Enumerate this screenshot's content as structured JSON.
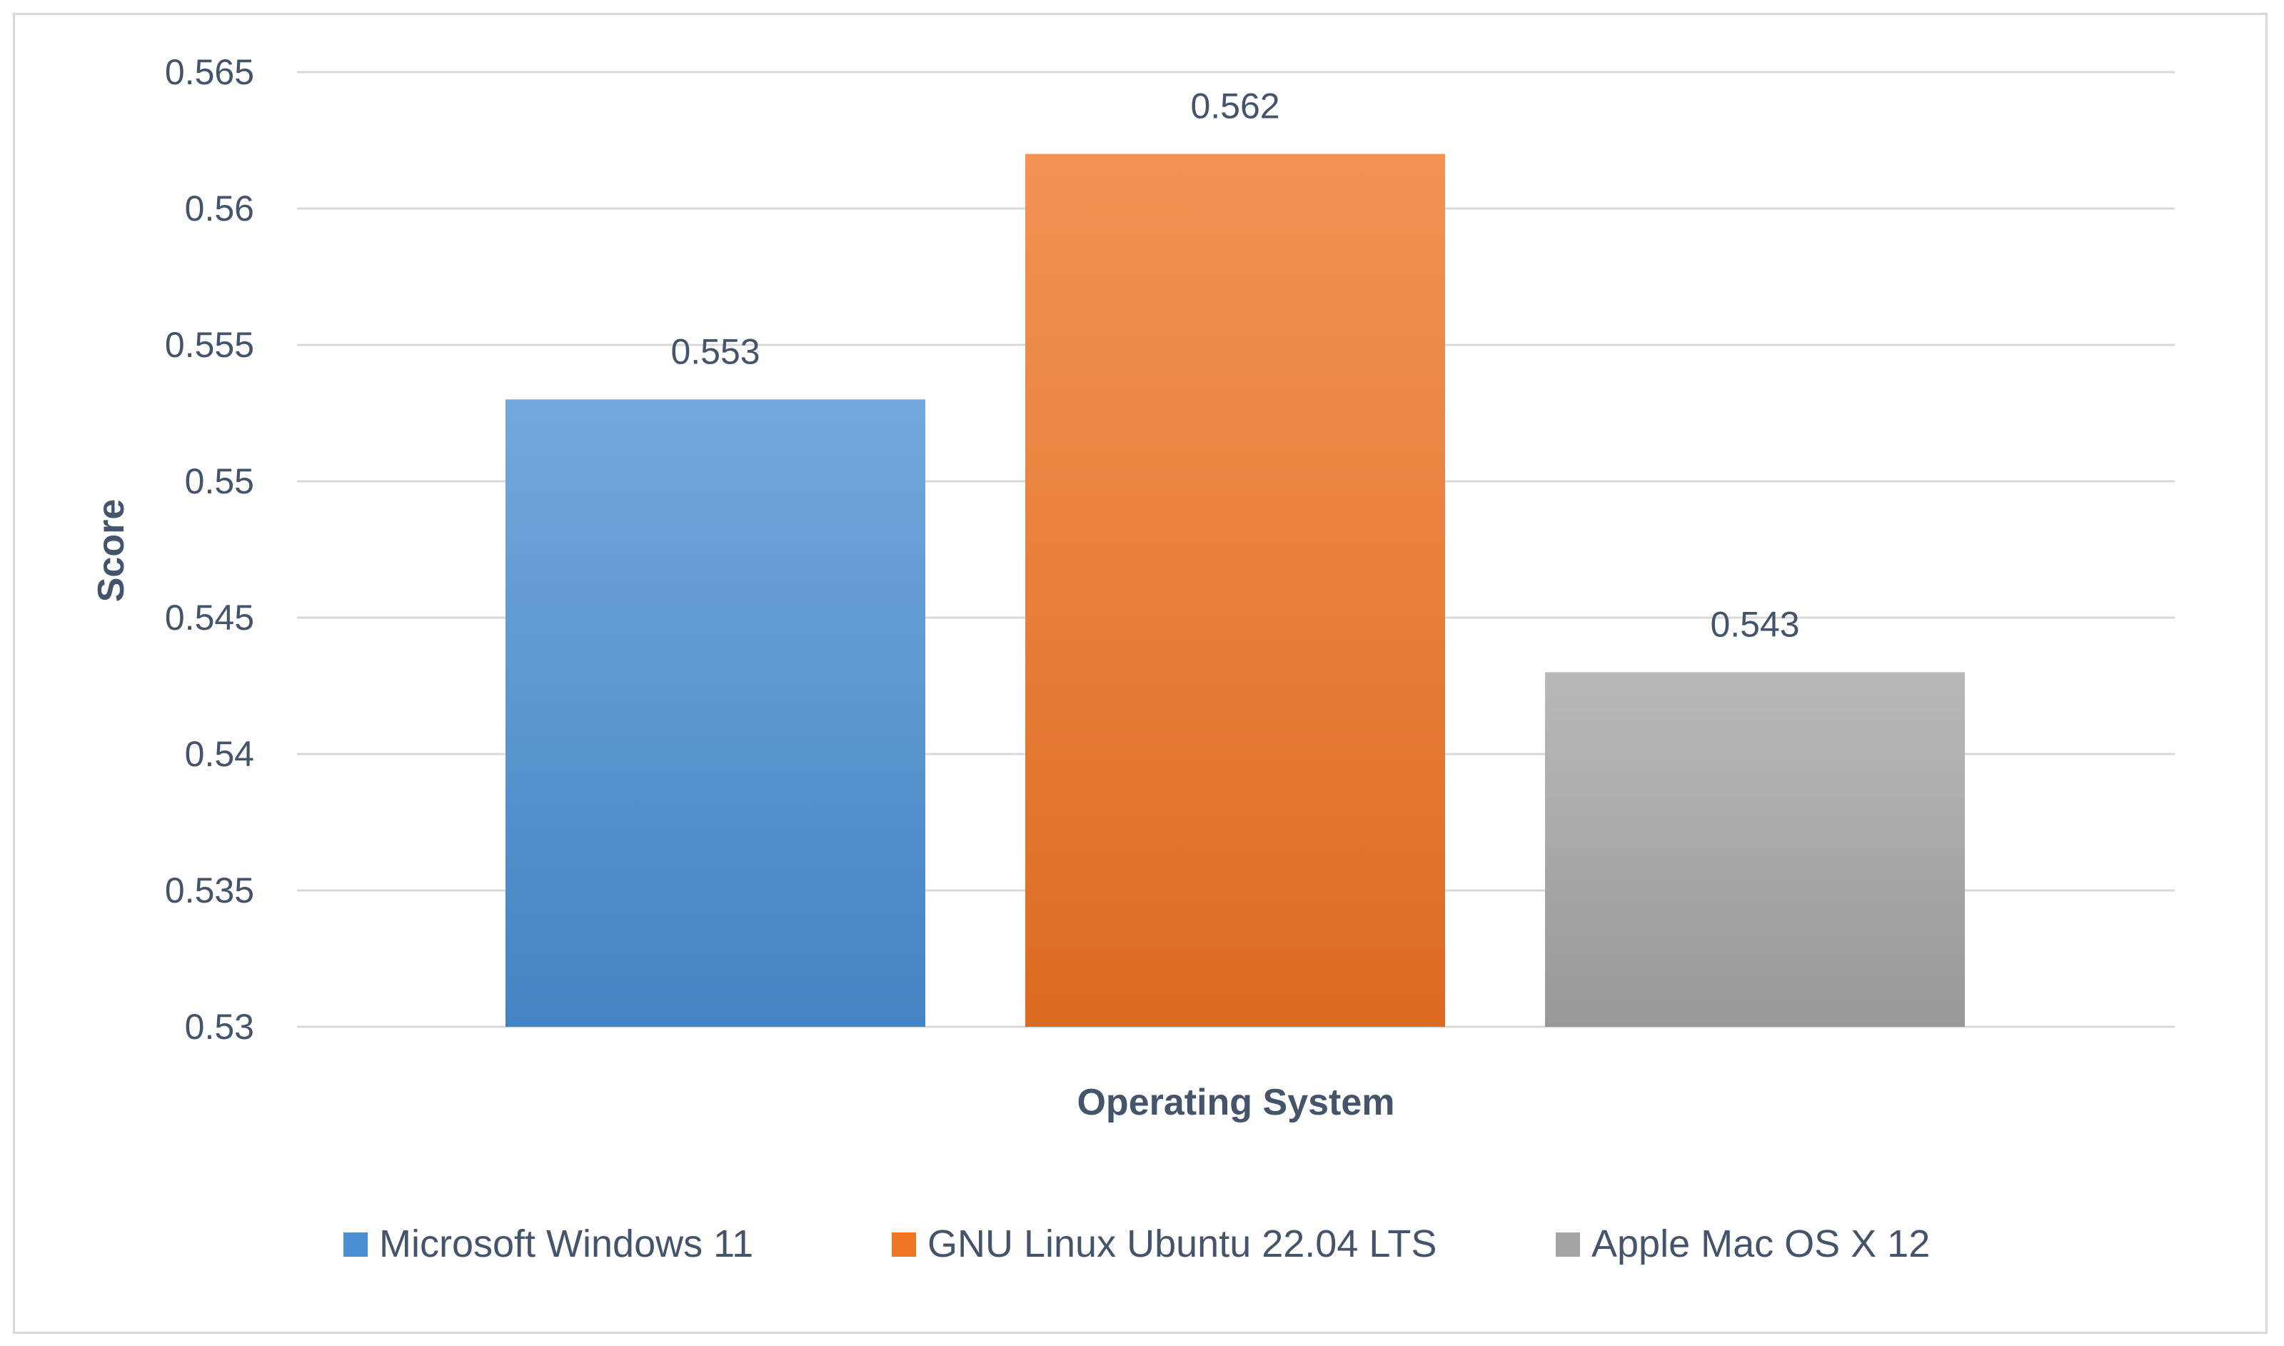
{
  "chart_data": {
    "type": "bar",
    "categories": [
      "Operating System"
    ],
    "series": [
      {
        "name": "Microsoft Windows 11",
        "values": [
          0.553
        ],
        "color": "#4a8fd3",
        "label": "0.553"
      },
      {
        "name": "GNU Linux Ubuntu 22.04 LTS",
        "values": [
          0.562
        ],
        "color": "#ef7424",
        "label": "0.562"
      },
      {
        "name": "Apple Mac OS X 12",
        "values": [
          0.543
        ],
        "color": "#a5a5a5",
        "label": "0.543"
      }
    ],
    "xlabel": "Operating System",
    "ylabel": "Score",
    "ylim": [
      0.53,
      0.565
    ],
    "yticks": [
      "0.565",
      "0.56",
      "0.555",
      "0.55",
      "0.545",
      "0.54",
      "0.535",
      "0.53"
    ],
    "ytick_values": [
      0.565,
      0.56,
      0.555,
      0.55,
      0.545,
      0.54,
      0.535,
      0.53
    ],
    "grid": true,
    "legend": "bottom"
  }
}
